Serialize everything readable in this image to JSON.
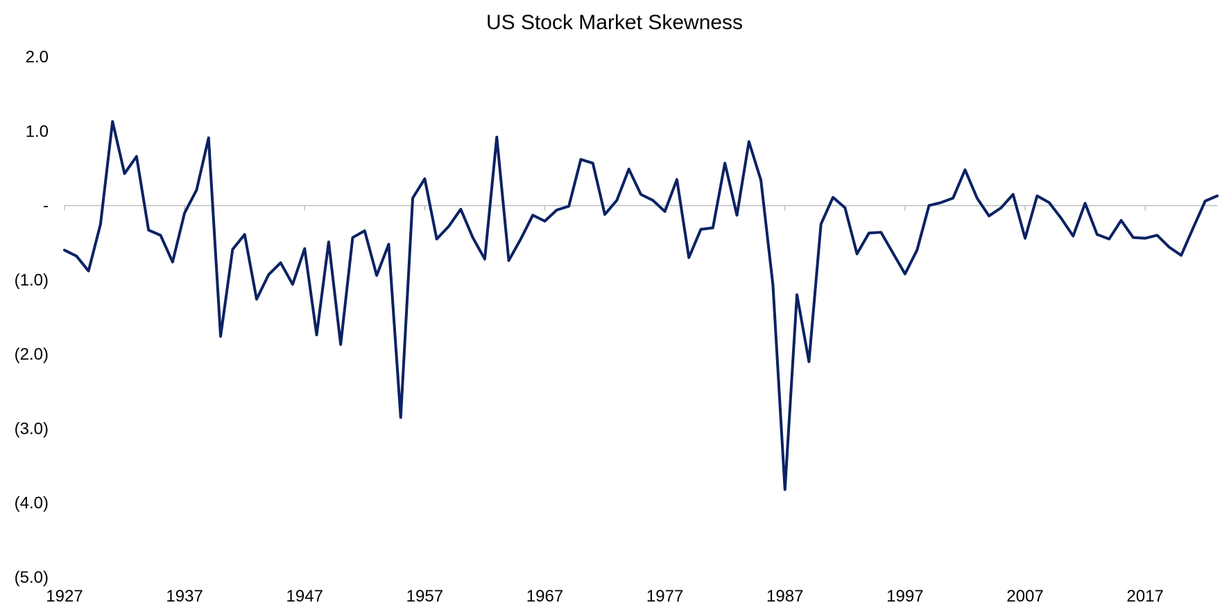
{
  "chart_data": {
    "type": "line",
    "title": "US Stock Market Skewness",
    "xlabel": "",
    "ylabel": "",
    "ylim": [
      -5.0,
      2.0
    ],
    "y_ticks": [
      {
        "value": 2.0,
        "label": "2.0"
      },
      {
        "value": 1.0,
        "label": "1.0"
      },
      {
        "value": 0.0,
        "label": "-"
      },
      {
        "value": -1.0,
        "label": "(1.0)"
      },
      {
        "value": -2.0,
        "label": "(2.0)"
      },
      {
        "value": -3.0,
        "label": "(3.0)"
      },
      {
        "value": -4.0,
        "label": "(4.0)"
      },
      {
        "value": -5.0,
        "label": "(5.0)"
      }
    ],
    "x_ticks": [
      1927,
      1937,
      1947,
      1957,
      1967,
      1977,
      1987,
      1997,
      2007,
      2017
    ],
    "x_tick_labels": [
      "1927",
      "1937",
      "1947",
      "1957",
      "1967",
      "1977",
      "1987",
      "1997",
      "2007",
      "2017"
    ],
    "grid": false,
    "legend": "none",
    "line_color": "#0b2263",
    "axis_color": "#bfbfbf",
    "series": [
      {
        "x": [
          1927,
          1928,
          1929,
          1930,
          1931,
          1932,
          1933,
          1934,
          1935,
          1936,
          1937,
          1938,
          1939,
          1940,
          1941,
          1942,
          1943,
          1944,
          1945,
          1946,
          1947,
          1948,
          1949,
          1950,
          1951,
          1952,
          1953,
          1954,
          1955,
          1956,
          1957,
          1958,
          1959,
          1960,
          1961,
          1962,
          1963,
          1964,
          1965,
          1966,
          1967,
          1968,
          1969,
          1970,
          1971,
          1972,
          1973,
          1974,
          1975,
          1976,
          1977,
          1978,
          1979,
          1980,
          1981,
          1982,
          1983,
          1984,
          1985,
          1986,
          1987,
          1988,
          1989,
          1990,
          1991,
          1992,
          1993,
          1994,
          1995,
          1996,
          1997,
          1998,
          1999,
          2000,
          2001,
          2002,
          2003,
          2004,
          2005,
          2006,
          2007,
          2008,
          2009,
          2010,
          2011,
          2012,
          2013,
          2014,
          2015,
          2016,
          2017,
          2018,
          2019,
          2020,
          2021,
          2022,
          2023
        ],
        "values": [
          -0.6,
          -0.68,
          -0.88,
          -0.25,
          1.13,
          0.43,
          0.66,
          -0.33,
          -0.4,
          -0.76,
          -0.1,
          0.21,
          0.91,
          -1.76,
          -0.59,
          -0.39,
          -1.26,
          -0.93,
          -0.77,
          -1.06,
          -0.58,
          -1.74,
          -0.49,
          -1.87,
          -0.43,
          -0.34,
          -0.94,
          -0.52,
          -2.85,
          0.1,
          0.36,
          -0.45,
          -0.28,
          -0.05,
          -0.43,
          -0.72,
          0.92,
          -0.74,
          -0.45,
          -0.13,
          -0.21,
          -0.06,
          -0.01,
          0.62,
          0.57,
          -0.12,
          0.07,
          0.49,
          0.15,
          0.07,
          -0.08,
          0.35,
          -0.7,
          -0.32,
          -0.3,
          0.57,
          -0.13,
          0.86,
          0.34,
          -1.07,
          -3.82,
          -1.2,
          -2.1,
          -0.25,
          0.11,
          -0.03,
          -0.65,
          -0.37,
          -0.36,
          -0.64,
          -0.92,
          -0.6,
          0.0,
          0.04,
          0.1,
          0.48,
          0.1,
          -0.14,
          -0.03,
          0.15,
          -0.44,
          0.13,
          0.04,
          -0.17,
          -0.41,
          0.03,
          -0.39,
          -0.45,
          -0.2,
          -0.43,
          -0.44,
          -0.4,
          -0.56,
          -0.67,
          -0.3,
          0.06,
          0.13
        ]
      }
    ]
  }
}
